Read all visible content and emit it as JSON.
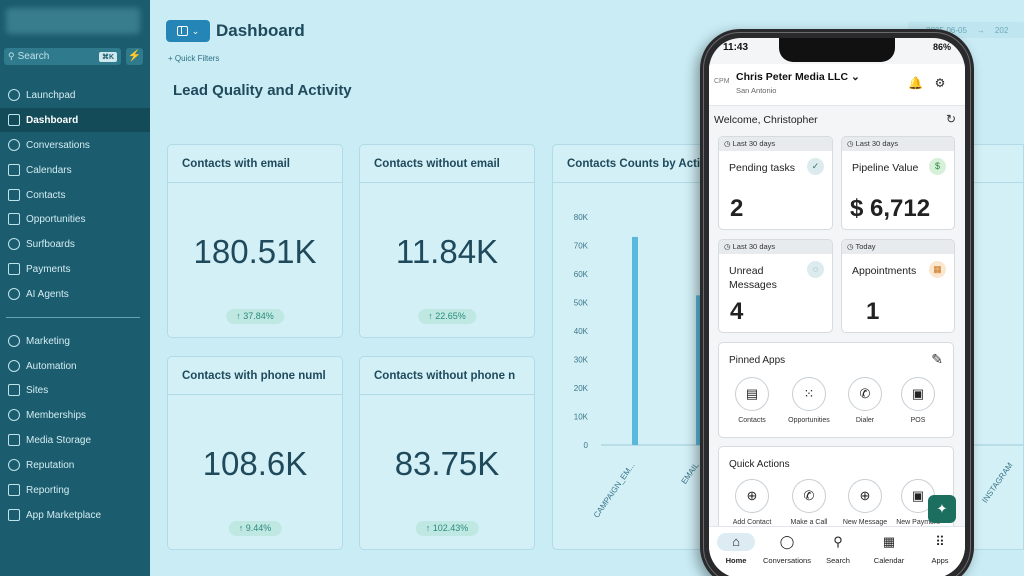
{
  "sidebar": {
    "search_placeholder": "Search",
    "search_shortcut": "⌘K",
    "bolt_icon": "⚡",
    "items": [
      {
        "label": "Launchpad",
        "icon": "launchpad-icon"
      },
      {
        "label": "Dashboard",
        "icon": "dashboard-icon",
        "active": true
      },
      {
        "label": "Conversations",
        "icon": "chat-icon"
      },
      {
        "label": "Calendars",
        "icon": "calendar-icon"
      },
      {
        "label": "Contacts",
        "icon": "contacts-icon"
      },
      {
        "label": "Opportunities",
        "icon": "opportunities-icon"
      },
      {
        "label": "Surfboards",
        "icon": "surfboard-icon"
      },
      {
        "label": "Payments",
        "icon": "payments-icon"
      },
      {
        "label": "AI Agents",
        "icon": "ai-agents-icon"
      }
    ],
    "items2": [
      {
        "label": "Marketing",
        "icon": "marketing-icon"
      },
      {
        "label": "Automation",
        "icon": "automation-icon"
      },
      {
        "label": "Sites",
        "icon": "sites-icon"
      },
      {
        "label": "Memberships",
        "icon": "memberships-icon"
      },
      {
        "label": "Media Storage",
        "icon": "media-storage-icon"
      },
      {
        "label": "Reputation",
        "icon": "reputation-icon"
      },
      {
        "label": "Reporting",
        "icon": "reporting-icon"
      },
      {
        "label": "App Marketplace",
        "icon": "app-marketplace-icon"
      }
    ]
  },
  "header": {
    "title": "Dashboard",
    "quick_filters": "+ Quick Filters",
    "date_start": "2025-06-05",
    "date_arrow": "→",
    "date_end": "202"
  },
  "section_title": "Lead Quality and Activity",
  "cards": [
    {
      "title": "Contacts with email",
      "value": "180.51K",
      "change": "↑ 37.84%"
    },
    {
      "title": "Contacts without email",
      "value": "11.84K",
      "change": "↑ 22.65%"
    },
    {
      "title": "Contacts with phone numl",
      "value": "108.6K",
      "change": "↑ 9.44%"
    },
    {
      "title": "Contacts without phone n",
      "value": "83.75K",
      "change": "↑ 102.43%"
    }
  ],
  "chart_title": "Contacts Counts by Activ",
  "chart_data": {
    "type": "bar",
    "title": "Contacts Counts by Activ",
    "categories": [
      "CAMPAIGN_EM...",
      "EMAIL",
      "INSTAGRAM"
    ],
    "values": [
      73000,
      52500,
      null
    ],
    "y_ticks": [
      "0",
      "10K",
      "20K",
      "30K",
      "40K",
      "50K",
      "60K",
      "70K",
      "80K"
    ],
    "ylim": [
      0,
      80000
    ],
    "grid": false,
    "bar_color": "#5bb8dd"
  },
  "phone": {
    "time": "11:43",
    "battery": "86%",
    "cpm": "CPM",
    "company": "Chris Peter Media LLC",
    "company_caret": "⌄",
    "city": "San Antonio",
    "bell_icon": "🔔",
    "gear_icon": "⚙",
    "welcome": "Welcome, Christopher",
    "refresh_icon": "↻",
    "metrics": [
      {
        "period": "◷ Last 30 days",
        "label": "Pending tasks",
        "value": "2",
        "badge": "✓",
        "badge_color": "#dcecee",
        "badge_text": "#3a6a66"
      },
      {
        "period": "◷ Last 30 days",
        "label": "Pipeline Value",
        "value": "$ 6,712",
        "badge": "$",
        "badge_color": "#d7f0d9",
        "badge_text": "#2b8a3c"
      },
      {
        "period": "◷ Last 30 days",
        "label": "Unread Messages",
        "value": "4",
        "badge": "◌",
        "badge_color": "#dcecee",
        "badge_text": "#3a6a66"
      },
      {
        "period": "◷ Today",
        "label": "Appointments",
        "value": "1",
        "badge": "▦",
        "badge_color": "#fbe7cf",
        "badge_text": "#c9781d"
      }
    ],
    "pinned_title": "Pinned Apps",
    "pinned_edit_icon": "✎",
    "pinned_apps": [
      {
        "label": "Contacts",
        "icon": "▤"
      },
      {
        "label": "Opportunities",
        "icon": "⁙"
      },
      {
        "label": "Dialer",
        "icon": "✆"
      },
      {
        "label": "POS",
        "icon": "▣"
      }
    ],
    "quick_title": "Quick Actions",
    "quick_actions": [
      {
        "label": "Add Contact",
        "icon": "⊕"
      },
      {
        "label": "Make a Call",
        "icon": "✆"
      },
      {
        "label": "New Message",
        "icon": "⊕"
      },
      {
        "label": "New Payment",
        "icon": "▣"
      }
    ],
    "fab_icon": "✦",
    "tabs": [
      {
        "label": "Home",
        "icon": "⌂",
        "active": true
      },
      {
        "label": "Conversations",
        "icon": "◯"
      },
      {
        "label": "Search",
        "icon": "⚲"
      },
      {
        "label": "Calendar",
        "icon": "▦"
      },
      {
        "label": "Apps",
        "icon": "⠿"
      }
    ]
  }
}
